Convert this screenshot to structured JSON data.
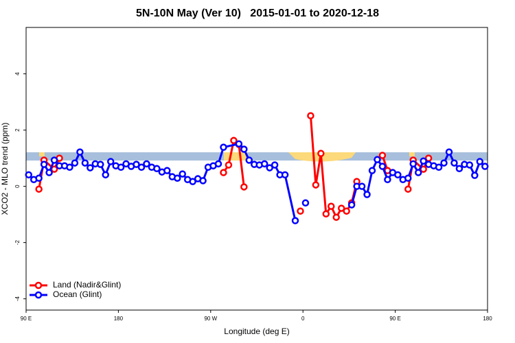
{
  "chart_data": {
    "type": "line",
    "title": "5N-10N May (Ver 10)   2015-01-01 to 2020-12-18",
    "xlabel": "Longitude (deg E)",
    "ylabel": "XCO2 - MLO trend (ppm)",
    "xlim": [
      90,
      540
    ],
    "ylim": [
      -4.4,
      5.65
    ],
    "xticks": [
      {
        "value": 90,
        "label": "90 E"
      },
      180,
      {
        "value": 270,
        "label": "90 W"
      },
      {
        "value": 360,
        "label": "0"
      },
      {
        "value": 450,
        "label": "90 E"
      },
      {
        "value": 540,
        "label": "180"
      }
    ],
    "yticks": [
      -4,
      -2,
      0,
      2,
      4
    ],
    "legend": "bottom-left",
    "series": [
      {
        "name": "Land (Nadir&Glint)",
        "color": "#ff0000",
        "x": [
          102.5,
          107.5,
          117.5,
          122.5,
          200,
          282.5,
          287.5,
          292.5,
          297.5,
          302.5,
          330,
          357.5,
          362.5,
          367.5,
          372.5,
          377.5,
          382.5,
          387.5,
          392.5,
          397.5,
          402.5,
          407.5,
          412.5,
          420,
          437.5,
          442.5,
          450,
          462.5,
          467.5,
          477.5,
          482.5
        ],
        "values": [
          -0.1,
          0.93,
          0.61,
          1.0,
          null,
          0.49,
          0.76,
          1.63,
          1.49,
          -0.02,
          null,
          -0.88,
          null,
          2.51,
          0.05,
          1.17,
          -0.98,
          -0.71,
          -1.1,
          -0.78,
          -0.88,
          -0.59,
          0.17,
          null,
          1.1,
          0.56,
          null,
          -0.1,
          0.93,
          0.61,
          1.0
        ]
      },
      {
        "name": "Ocean (Glint)",
        "color": "#0000ff",
        "x": [
          92.5,
          97.5,
          102.5,
          107.5,
          112.5,
          117.5,
          122.5,
          127.5,
          132.5,
          137.5,
          142.5,
          147.5,
          152.5,
          157.5,
          162.5,
          167.5,
          172.5,
          177.5,
          182.5,
          187.5,
          192.5,
          197.5,
          202.5,
          207.5,
          212.5,
          217.5,
          222.5,
          227.5,
          232.5,
          237.5,
          242.5,
          247.5,
          252.5,
          257.5,
          262.5,
          267.5,
          272.5,
          277.5,
          282.5,
          297.5,
          302.5,
          307.5,
          312.5,
          317.5,
          322.5,
          327.5,
          332.5,
          337.5,
          342.5,
          352.5,
          357.5,
          362.5,
          385,
          407.5,
          412.5,
          417.5,
          422.5,
          427.5,
          432.5,
          437.5,
          442.5,
          447.5,
          452.5,
          457.5,
          462.5,
          467.5,
          472.5,
          477.5,
          482.5,
          487.5,
          492.5,
          497.5,
          502.5,
          507.5,
          512.5,
          517.5,
          522.5,
          527.5,
          532.5,
          537.5
        ],
        "values": [
          0.41,
          0.24,
          0.29,
          0.78,
          0.49,
          0.93,
          0.73,
          0.73,
          0.68,
          0.83,
          1.22,
          0.83,
          0.66,
          0.8,
          0.78,
          0.41,
          0.88,
          0.73,
          0.68,
          0.8,
          0.71,
          0.78,
          0.68,
          0.8,
          0.68,
          0.63,
          0.51,
          0.56,
          0.34,
          0.29,
          0.44,
          0.24,
          0.17,
          0.27,
          0.2,
          0.68,
          0.73,
          0.8,
          1.39,
          1.51,
          1.32,
          0.93,
          0.78,
          0.76,
          0.8,
          0.66,
          0.76,
          0.41,
          0.41,
          -1.22,
          null,
          -0.59,
          null,
          -0.66,
          0,
          0,
          -0.29,
          0.56,
          0.95,
          0.71,
          0.24,
          0.49,
          0.41,
          0.24,
          0.29,
          0.8,
          0.49,
          0.9,
          0.78,
          0.73,
          0.68,
          0.83,
          1.22,
          0.83,
          0.63,
          0.78,
          0.76,
          0.39,
          0.88,
          0.71
        ]
      }
    ]
  }
}
